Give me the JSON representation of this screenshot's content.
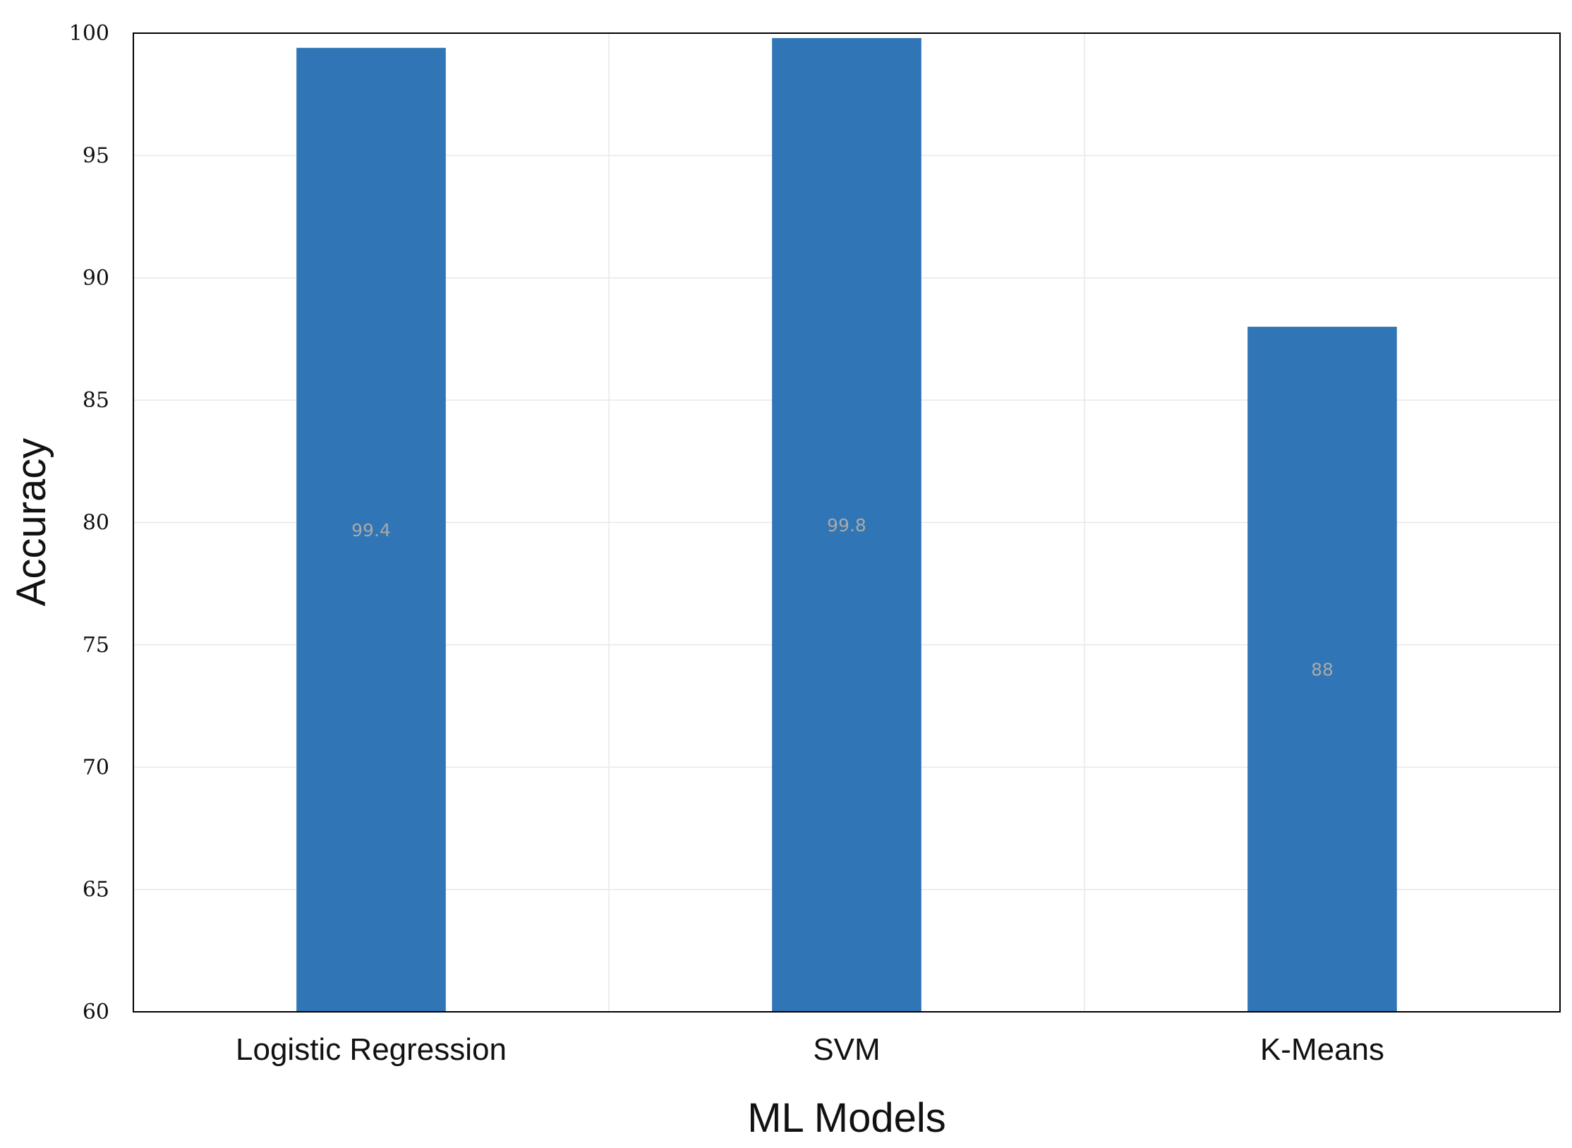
{
  "chart_data": {
    "type": "bar",
    "categories": [
      "Logistic Regression",
      "SVM",
      "K-Means"
    ],
    "values": [
      99.4,
      99.8,
      88
    ],
    "data_labels": [
      "99.4",
      "99.8",
      "88"
    ],
    "xlabel": "ML Models",
    "ylabel": "Accuracy",
    "ylim": [
      60,
      100
    ],
    "yticks": [
      60,
      65,
      70,
      75,
      80,
      85,
      90,
      95,
      100
    ],
    "grid": true,
    "legend": "none",
    "colors": {
      "bar": "#3075b5",
      "data_label": "#a9a9a9",
      "grid": "#e8e8e8",
      "frame": "#000000"
    }
  }
}
